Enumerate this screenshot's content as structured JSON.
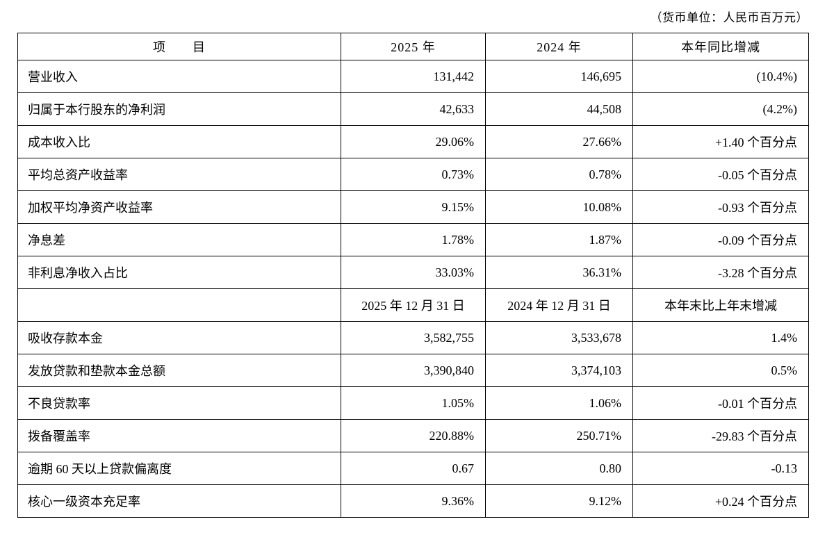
{
  "note": "（货币单位：人民币百万元）",
  "table": {
    "header": [
      "项　　目",
      "2025 年",
      "2024 年",
      "本年同比增减"
    ],
    "rows": [
      {
        "type": "data",
        "cells": [
          "营业收入",
          "131,442",
          "146,695",
          "(10.4%)"
        ]
      },
      {
        "type": "data",
        "cells": [
          "归属于本行股东的净利润",
          "42,633",
          "44,508",
          "(4.2%)"
        ]
      },
      {
        "type": "data",
        "cells": [
          "成本收入比",
          "29.06%",
          "27.66%",
          "+1.40 个百分点"
        ]
      },
      {
        "type": "data",
        "cells": [
          "平均总资产收益率",
          "0.73%",
          "0.78%",
          "-0.05 个百分点"
        ]
      },
      {
        "type": "data",
        "cells": [
          "加权平均净资产收益率",
          "9.15%",
          "10.08%",
          "-0.93 个百分点"
        ]
      },
      {
        "type": "data",
        "cells": [
          "净息差",
          "1.78%",
          "1.87%",
          "-0.09 个百分点"
        ]
      },
      {
        "type": "data",
        "cells": [
          "非利息净收入占比",
          "33.03%",
          "36.31%",
          "-3.28 个百分点"
        ]
      },
      {
        "type": "subheader",
        "cells": [
          "",
          "2025 年 12 月 31 日",
          "2024 年 12 月 31 日",
          "本年末比上年末增减"
        ]
      },
      {
        "type": "data",
        "cells": [
          "吸收存款本金",
          "3,582,755",
          "3,533,678",
          "1.4%"
        ]
      },
      {
        "type": "data",
        "cells": [
          "发放贷款和垫款本金总额",
          "3,390,840",
          "3,374,103",
          "0.5%"
        ]
      },
      {
        "type": "data",
        "cells": [
          "不良贷款率",
          "1.05%",
          "1.06%",
          "-0.01 个百分点"
        ]
      },
      {
        "type": "data",
        "cells": [
          "拨备覆盖率",
          "220.88%",
          "250.71%",
          "-29.83 个百分点"
        ]
      },
      {
        "type": "data",
        "cells": [
          "逾期 60 天以上贷款偏离度",
          "0.67",
          "0.80",
          "-0.13"
        ]
      },
      {
        "type": "data",
        "cells": [
          "核心一级资本充足率",
          "9.36%",
          "9.12%",
          "+0.24 个百分点"
        ]
      }
    ]
  }
}
